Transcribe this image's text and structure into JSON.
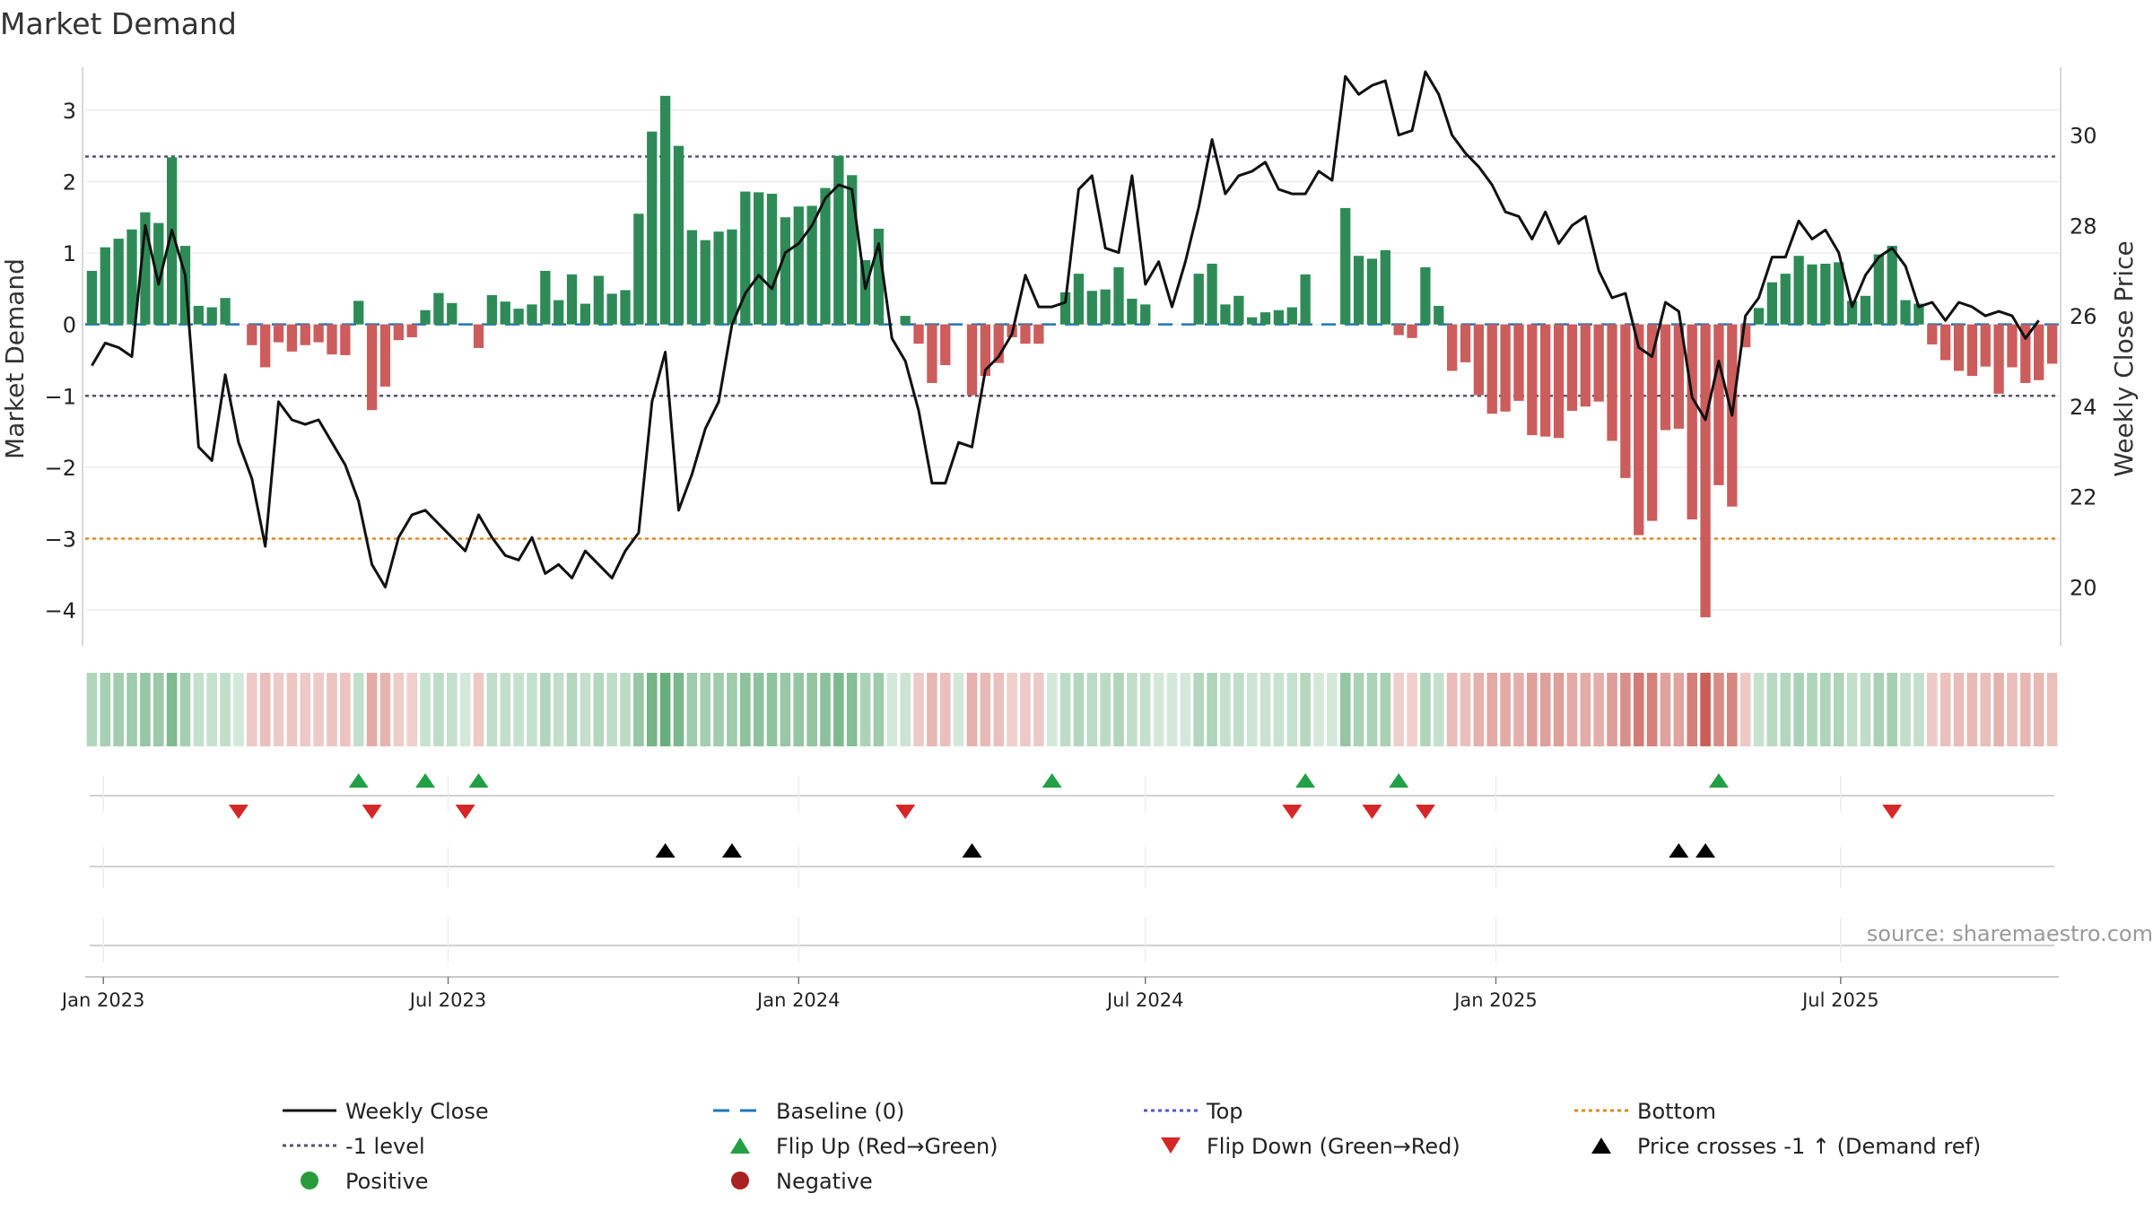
{
  "chart_data": {
    "type": "bar",
    "title": "Market Demand",
    "ylabel": "Market Demand",
    "y2label": "Weekly Close Price",
    "ylim": [
      -4.5,
      3.6
    ],
    "y2lim": [
      18.7,
      31.5
    ],
    "yticks": [
      "3",
      "2",
      "1",
      "0",
      "−1",
      "−2",
      "−3",
      "−4"
    ],
    "y2ticks": [
      "30",
      "28",
      "26",
      "24",
      "22",
      "20"
    ],
    "xticks": [
      "Jan 2023",
      "Jul 2023",
      "Jan 2024",
      "Jul 2024",
      "Jan 2025",
      "Jul 2025"
    ],
    "start_date": "2022-12-26",
    "top_level": 2.35,
    "minus1_level": -1,
    "bottom_level": -3,
    "baseline": 0,
    "demand": [
      0.75,
      1.08,
      1.2,
      1.33,
      1.57,
      1.42,
      2.34,
      1.1,
      0.26,
      0.24,
      0.37,
      0.0,
      -0.29,
      -0.6,
      -0.25,
      -0.38,
      -0.29,
      -0.25,
      -0.42,
      -0.43,
      0.33,
      -1.2,
      -0.87,
      -0.22,
      -0.18,
      0.2,
      0.44,
      0.3,
      0.0,
      -0.33,
      0.41,
      0.32,
      0.22,
      0.28,
      0.75,
      0.34,
      0.7,
      0.29,
      0.68,
      0.43,
      0.48,
      1.55,
      2.7,
      3.2,
      2.5,
      1.32,
      1.18,
      1.3,
      1.33,
      1.86,
      1.85,
      1.83,
      1.5,
      1.65,
      1.66,
      1.91,
      2.36,
      2.09,
      0.9,
      1.34,
      0.0,
      0.12,
      -0.27,
      -0.82,
      -0.57,
      0.0,
      -0.99,
      -0.72,
      -0.54,
      -0.18,
      -0.27,
      -0.27,
      0.0,
      0.45,
      0.71,
      0.47,
      0.49,
      0.8,
      0.36,
      0.28,
      0.0,
      0.0,
      0.0,
      0.71,
      0.85,
      0.28,
      0.4,
      0.1,
      0.17,
      0.2,
      0.24,
      0.7,
      0.0,
      0.0,
      1.63,
      0.96,
      0.92,
      1.04,
      -0.15,
      -0.19,
      0.8,
      0.26,
      -0.65,
      -0.53,
      -0.99,
      -1.25,
      -1.22,
      -1.07,
      -1.55,
      -1.57,
      -1.59,
      -1.21,
      -1.15,
      -1.08,
      -1.63,
      -2.15,
      -2.95,
      -2.75,
      -1.48,
      -1.46,
      -2.73,
      -4.1,
      -2.25,
      -2.55,
      -0.32,
      0.23,
      0.59,
      0.71,
      0.96,
      0.84,
      0.85,
      0.87,
      0.33,
      0.4,
      0.98,
      1.1,
      0.34,
      0.29,
      -0.28,
      -0.5,
      -0.65,
      -0.72,
      -0.59,
      -0.97,
      -0.6,
      -0.82,
      -0.78,
      -0.55
    ],
    "price": [
      24.9,
      25.4,
      25.3,
      25.1,
      28.0,
      26.7,
      27.9,
      26.9,
      23.1,
      22.8,
      24.7,
      23.2,
      22.4,
      20.9,
      24.1,
      23.7,
      23.6,
      23.7,
      23.2,
      22.7,
      21.9,
      20.5,
      20.0,
      21.1,
      21.6,
      21.7,
      21.4,
      21.1,
      20.8,
      21.6,
      21.1,
      20.7,
      20.6,
      21.1,
      20.3,
      20.5,
      20.2,
      20.8,
      20.5,
      20.2,
      20.8,
      21.2,
      24.1,
      25.2,
      21.7,
      22.5,
      23.5,
      24.1,
      25.8,
      26.5,
      26.9,
      26.6,
      27.4,
      27.6,
      28.0,
      28.6,
      28.9,
      28.8,
      26.6,
      27.6,
      25.5,
      25.0,
      23.9,
      22.3,
      22.3,
      23.2,
      23.1,
      24.8,
      25.1,
      25.6,
      26.9,
      26.2,
      26.2,
      26.3,
      28.8,
      29.1,
      27.5,
      27.4,
      29.1,
      26.7,
      27.2,
      26.2,
      27.2,
      28.4,
      29.9,
      28.7,
      29.1,
      29.2,
      29.4,
      28.8,
      28.7,
      28.7,
      29.2,
      29.0,
      31.3,
      30.9,
      31.1,
      31.2,
      30.0,
      30.1,
      31.4,
      30.9,
      30.0,
      29.6,
      29.3,
      28.9,
      28.3,
      28.2,
      27.7,
      28.3,
      27.6,
      28.0,
      28.2,
      27.0,
      26.4,
      26.5,
      25.3,
      25.1,
      26.3,
      26.1,
      24.2,
      23.7,
      25.0,
      23.8,
      26.0,
      26.4,
      27.3,
      27.3,
      28.1,
      27.7,
      27.9,
      27.4,
      26.2,
      26.9,
      27.3,
      27.5,
      27.1,
      26.2,
      26.3,
      25.9,
      26.3,
      26.2,
      26.0,
      26.1,
      26.0,
      25.5,
      25.9
    ],
    "flip_up_weeks": [
      20,
      25,
      29,
      72,
      91,
      98,
      122
    ],
    "flip_down_weeks": [
      11,
      21,
      28,
      61,
      90,
      96,
      100,
      135
    ],
    "price_cross_weeks": [
      43,
      48,
      66,
      119,
      121
    ],
    "legend": [
      {
        "label": "Weekly Close",
        "marker": "line",
        "color": "#111111"
      },
      {
        "label": "Baseline (0)",
        "marker": "dash",
        "color": "#1f77b4"
      },
      {
        "label": "Top",
        "marker": "dot-line",
        "color": "#5555cc"
      },
      {
        "label": "Bottom",
        "marker": "dot-line",
        "color": "#e08a1e"
      },
      {
        "label": "-1 level",
        "marker": "dot-line",
        "color": "#555566"
      },
      {
        "label": "Flip Up (Red→Green)",
        "marker": "triangle-up",
        "color": "#22a045"
      },
      {
        "label": "Flip Down (Green→Red)",
        "marker": "triangle-down",
        "color": "#d62728"
      },
      {
        "label": "Price crosses -1 ↑ (Demand ref)",
        "marker": "triangle-up",
        "color": "#000000"
      },
      {
        "label": "Positive",
        "marker": "circle",
        "color": "#2a9a3a"
      },
      {
        "label": "Negative",
        "marker": "circle",
        "color": "#a82222"
      }
    ],
    "legend_placement": "bottom"
  },
  "source": "source: sharemaestro.com",
  "colors": {
    "positive": "#2e8b57",
    "negative": "#cd5c5c",
    "line": "#111111",
    "top": "#5555cc",
    "bottom": "#e08a1e",
    "minus1": "#555566",
    "baseline": "#1f77b4"
  }
}
